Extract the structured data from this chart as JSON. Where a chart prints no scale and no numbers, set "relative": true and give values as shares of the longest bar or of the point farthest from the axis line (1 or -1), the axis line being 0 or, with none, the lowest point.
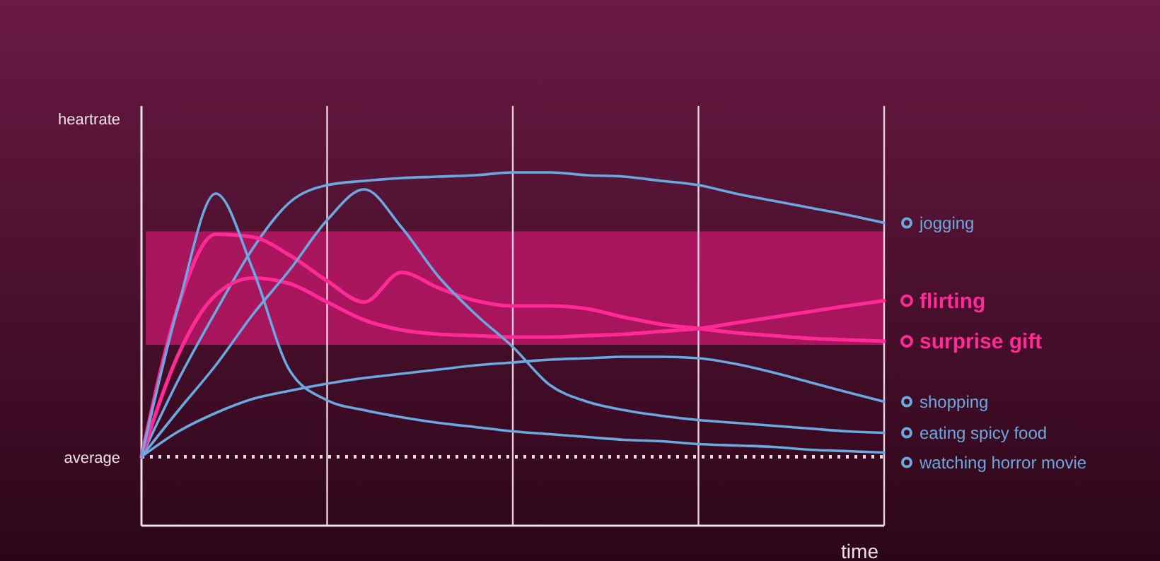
{
  "chart_data": {
    "type": "line",
    "relative": true,
    "xlabel": "time",
    "ylabel": "heartrate",
    "categories": [
      null,
      null,
      null,
      null,
      null,
      null,
      null,
      null,
      null,
      null,
      null,
      null,
      null,
      null,
      null,
      null,
      null,
      null,
      null,
      null,
      null
    ],
    "grid": "x",
    "legend": "right",
    "line_style": "solid",
    "ref_lines": [
      {
        "axis": "y",
        "value": 0.195,
        "label": "average",
        "color": "#e8d8e0",
        "line_style": "dotted"
      }
    ],
    "bands": [
      {
        "axis": "y",
        "from": 0.512,
        "to": 0.833,
        "color": "#c8186e"
      }
    ],
    "series": [
      {
        "name": "jogging",
        "color": "#6aa8e0",
        "values": [
          0.195,
          0.414,
          0.606,
          0.785,
          0.916,
          0.964,
          0.976,
          0.984,
          0.988,
          0.992,
          1.0,
          1.0,
          0.992,
          0.988,
          0.976,
          0.964,
          0.94,
          0.92,
          0.9,
          0.88,
          0.857
        ]
      },
      {
        "name": "flirting",
        "color": "#ff2a96",
        "values": [
          0.195,
          0.486,
          0.653,
          0.701,
          0.685,
          0.633,
          0.582,
          0.554,
          0.542,
          0.538,
          0.534,
          0.534,
          0.538,
          0.542,
          0.55,
          0.558,
          0.574,
          0.59,
          0.606,
          0.622,
          0.637
        ]
      },
      {
        "name": "surprise gift",
        "color": "#ff2a96",
        "values": [
          0.195,
          0.625,
          0.825,
          0.817,
          0.765,
          0.693,
          0.633,
          0.717,
          0.673,
          0.637,
          0.622,
          0.622,
          0.614,
          0.59,
          0.57,
          0.558,
          0.546,
          0.538,
          0.53,
          0.526,
          0.522
        ]
      },
      {
        "name": "shopping",
        "color": "#6aa8e0",
        "values": [
          0.195,
          0.267,
          0.319,
          0.359,
          0.382,
          0.402,
          0.418,
          0.43,
          0.442,
          0.454,
          0.462,
          0.47,
          0.474,
          0.478,
          0.478,
          0.474,
          0.458,
          0.434,
          0.406,
          0.378,
          0.351
        ]
      },
      {
        "name": "eating spicy food",
        "color": "#6aa8e0",
        "values": [
          0.195,
          0.327,
          0.454,
          0.598,
          0.725,
          0.865,
          0.952,
          0.845,
          0.705,
          0.598,
          0.506,
          0.398,
          0.351,
          0.327,
          0.311,
          0.299,
          0.291,
          0.283,
          0.275,
          0.267,
          0.263
        ]
      },
      {
        "name": "watching horror movie",
        "color": "#6aa8e0",
        "values": [
          0.195,
          0.625,
          0.94,
          0.725,
          0.438,
          0.355,
          0.327,
          0.307,
          0.291,
          0.279,
          0.267,
          0.259,
          0.251,
          0.243,
          0.239,
          0.231,
          0.227,
          0.223,
          0.215,
          0.211,
          0.207
        ]
      }
    ]
  }
}
